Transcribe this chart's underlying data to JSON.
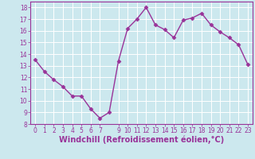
{
  "x": [
    0,
    1,
    2,
    3,
    4,
    5,
    6,
    7,
    8,
    9,
    10,
    11,
    12,
    13,
    14,
    15,
    16,
    17,
    18,
    19,
    20,
    21,
    22,
    23
  ],
  "y": [
    13.5,
    12.5,
    11.8,
    11.2,
    10.4,
    10.4,
    9.3,
    8.5,
    9.0,
    13.4,
    16.2,
    17.0,
    18.0,
    16.5,
    16.1,
    15.4,
    16.9,
    17.1,
    17.5,
    16.5,
    15.9,
    15.4,
    14.8,
    13.1
  ],
  "line_color": "#993399",
  "marker": "D",
  "markersize": 2.5,
  "linewidth": 1.0,
  "bg_color": "#cce8ee",
  "grid_color": "#ffffff",
  "xlabel": "Windchill (Refroidissement éolien,°C)",
  "xlabel_color": "#993399",
  "tick_color": "#993399",
  "ylim": [
    8,
    18.5
  ],
  "xlim": [
    -0.5,
    23.5
  ],
  "yticks": [
    8,
    9,
    10,
    11,
    12,
    13,
    14,
    15,
    16,
    17,
    18
  ],
  "xticks": [
    0,
    1,
    2,
    3,
    4,
    5,
    6,
    7,
    9,
    10,
    11,
    12,
    13,
    14,
    15,
    16,
    17,
    18,
    19,
    20,
    21,
    22,
    23
  ],
  "xticklabels": [
    "0",
    "1",
    "2",
    "3",
    "4",
    "5",
    "6",
    "7",
    "9",
    "10",
    "11",
    "12",
    "13",
    "14",
    "15",
    "16",
    "17",
    "18",
    "19",
    "20",
    "21",
    "22",
    "23"
  ],
  "tick_fontsize": 5.5,
  "xlabel_fontsize": 7.0
}
